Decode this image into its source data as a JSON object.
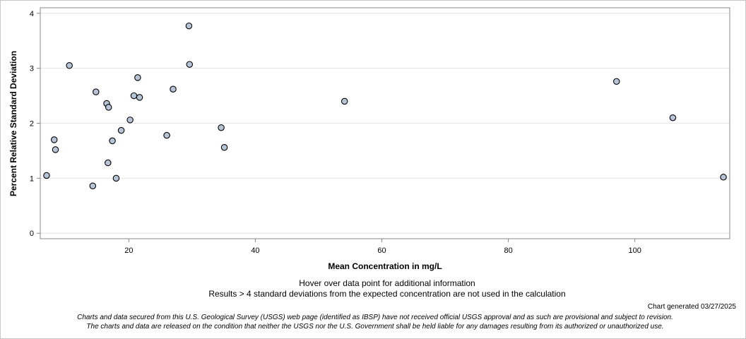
{
  "chart_data": {
    "type": "scatter",
    "xlabel": "Mean Concentration in mg/L",
    "ylabel": "Percent Relative Standard Deviation",
    "xlim": [
      6,
      115
    ],
    "ylim": [
      -0.1,
      4.1
    ],
    "xticks": [
      20,
      40,
      60,
      80,
      100
    ],
    "yticks": [
      0,
      1,
      2,
      3,
      4
    ],
    "grid": true,
    "points": [
      {
        "x": 7.0,
        "y": 1.05
      },
      {
        "x": 8.2,
        "y": 1.7
      },
      {
        "x": 8.4,
        "y": 1.52
      },
      {
        "x": 10.6,
        "y": 3.05
      },
      {
        "x": 14.3,
        "y": 0.86
      },
      {
        "x": 14.8,
        "y": 2.57
      },
      {
        "x": 16.5,
        "y": 2.36
      },
      {
        "x": 16.7,
        "y": 1.28
      },
      {
        "x": 16.8,
        "y": 2.29
      },
      {
        "x": 17.4,
        "y": 1.68
      },
      {
        "x": 18.0,
        "y": 1.0
      },
      {
        "x": 18.8,
        "y": 1.87
      },
      {
        "x": 20.2,
        "y": 2.06
      },
      {
        "x": 20.8,
        "y": 2.5
      },
      {
        "x": 21.4,
        "y": 2.83
      },
      {
        "x": 21.7,
        "y": 2.47
      },
      {
        "x": 26.0,
        "y": 1.78
      },
      {
        "x": 27.0,
        "y": 2.62
      },
      {
        "x": 29.5,
        "y": 3.77
      },
      {
        "x": 29.6,
        "y": 3.07
      },
      {
        "x": 34.6,
        "y": 1.92
      },
      {
        "x": 35.1,
        "y": 1.56
      },
      {
        "x": 54.1,
        "y": 2.4
      },
      {
        "x": 97.1,
        "y": 2.76
      },
      {
        "x": 106.0,
        "y": 2.1
      },
      {
        "x": 114.0,
        "y": 1.02
      }
    ]
  },
  "notes": {
    "hover": "Hover over data point for additional information",
    "results": "Results > 4 standard deviations from the expected concentration are not used in the calculation"
  },
  "generated": "Chart generated 03/27/2025",
  "disclaimer": {
    "line1": "Charts and data secured from this U.S. Geological Survey (USGS) web page (identified as IBSP) have not received official USGS approval and as such are provisional and subject to revision.",
    "line2": "The charts and data are released on the condition that neither the USGS nor the U.S. Government shall be held liable for any damages resulting from its authorized or unauthorized use."
  },
  "colors": {
    "marker_fill": "#b7c4d6",
    "marker_stroke": "#000000",
    "grid": "#e6e6e6",
    "axis": "#888888"
  }
}
